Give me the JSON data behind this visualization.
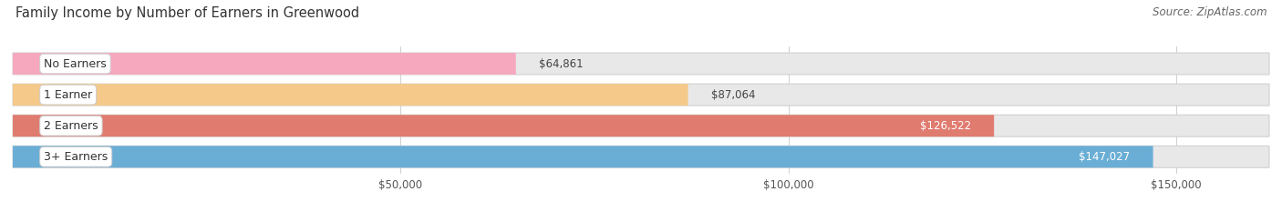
{
  "title": "Family Income by Number of Earners in Greenwood",
  "source": "Source: ZipAtlas.com",
  "categories": [
    "No Earners",
    "1 Earner",
    "2 Earners",
    "3+ Earners"
  ],
  "values": [
    64861,
    87064,
    126522,
    147027
  ],
  "bar_colors": [
    "#f5a8be",
    "#f5c98a",
    "#e07b70",
    "#6aaed6"
  ],
  "label_colors": [
    "#444444",
    "#444444",
    "#ffffff",
    "#ffffff"
  ],
  "value_labels": [
    "$64,861",
    "$87,064",
    "$126,522",
    "$147,027"
  ],
  "x_ticks": [
    50000,
    100000,
    150000
  ],
  "x_tick_labels": [
    "$50,000",
    "$100,000",
    "$150,000"
  ],
  "x_max": 162000,
  "background_color": "#f5f5f5",
  "track_color": "#e8e8e8",
  "title_fontsize": 10.5,
  "source_fontsize": 8.5,
  "label_fontsize": 9,
  "value_fontsize": 8.5,
  "tick_fontsize": 8.5
}
